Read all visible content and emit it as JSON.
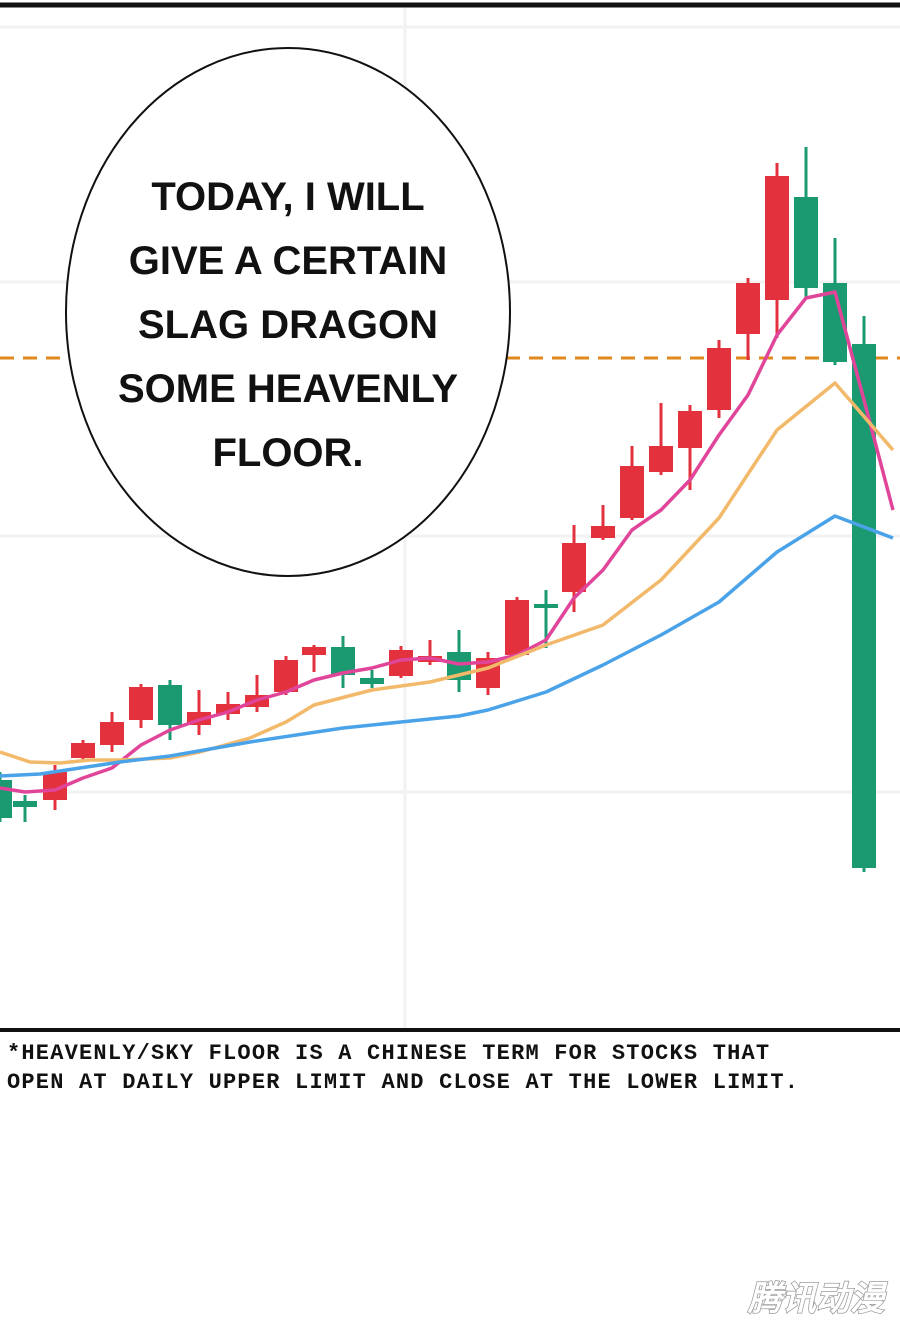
{
  "speech_bubble": {
    "lines": [
      "TODAY, I WILL",
      "GIVE A CERTAIN",
      "SLAG DRAGON",
      "SOME HEAVENLY",
      "FLOOR."
    ]
  },
  "footnote": {
    "lines": [
      "*HEAVENLY/SKY FLOOR IS A CHINESE TERM FOR STOCKS THAT",
      "OPEN AT DAILY UPPER LIMIT AND CLOSE AT THE LOWER LIMIT."
    ]
  },
  "watermark": "腾讯动漫"
}
